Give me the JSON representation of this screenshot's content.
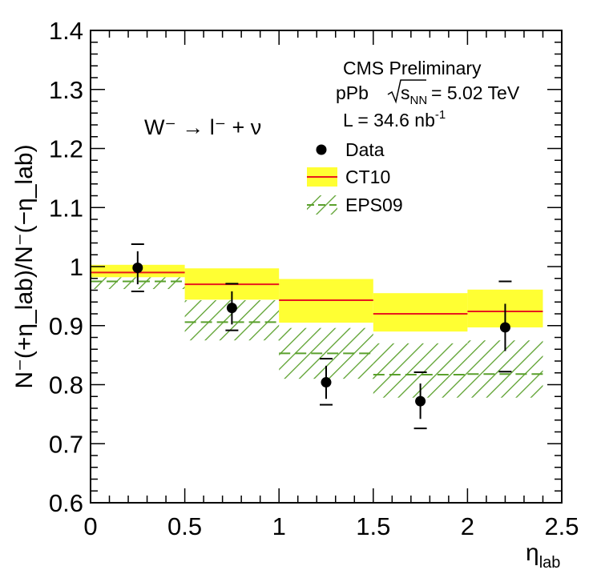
{
  "chart_data": {
    "type": "binned-comparison",
    "xlabel": "η",
    "xlabel_sub": "lab",
    "ylabel_full": "N⁻(+η_lab)/N⁻(−η_lab)",
    "xlim": [
      0,
      2.5
    ],
    "ylim": [
      0.6,
      1.4
    ],
    "x_ticks": [
      "0",
      "0.5",
      "1",
      "1.5",
      "2",
      "2.5"
    ],
    "y_ticks": [
      "0.6",
      "0.7",
      "0.8",
      "0.9",
      "1",
      "1.1",
      "1.2",
      "1.3",
      "1.4"
    ],
    "process_label": "W⁻ → l⁻ + ν",
    "annotations": {
      "experiment": "CMS Preliminary",
      "system": "pPb",
      "energy": "= 5.02 TeV",
      "lumi": "L = 34.6 nb",
      "lumi_unit_exp": "-1"
    },
    "legend": [
      {
        "name": "Data"
      },
      {
        "name": "CT10"
      },
      {
        "name": "EPS09"
      }
    ],
    "bins": [
      [
        0,
        0.5
      ],
      [
        0.5,
        1.0
      ],
      [
        1.0,
        1.5
      ],
      [
        1.5,
        2.0
      ],
      [
        2.0,
        2.4
      ]
    ],
    "series": [
      {
        "name": "Data",
        "x": [
          0.25,
          0.75,
          1.25,
          1.75,
          2.2
        ],
        "y": [
          0.998,
          0.93,
          0.804,
          0.772,
          0.897
        ],
        "stat_err": [
          0.028,
          0.028,
          0.028,
          0.03,
          0.04
        ],
        "sys_low": [
          0.958,
          0.892,
          0.766,
          0.726,
          0.822
        ],
        "sys_high": [
          1.038,
          0.971,
          0.844,
          0.821,
          0.975
        ]
      },
      {
        "name": "CT10",
        "central": [
          0.99,
          0.97,
          0.943,
          0.92,
          0.924
        ],
        "band_low": [
          0.982,
          0.944,
          0.905,
          0.89,
          0.897
        ],
        "band_high": [
          1.003,
          0.997,
          0.979,
          0.955,
          0.961
        ]
      },
      {
        "name": "EPS09",
        "central": [
          0.975,
          0.906,
          0.853,
          0.817,
          0.818
        ],
        "band_low": [
          0.962,
          0.875,
          0.81,
          0.778,
          0.778
        ],
        "band_high": [
          0.982,
          0.943,
          0.896,
          0.87,
          0.875
        ]
      }
    ]
  },
  "colors": {
    "ct10_band": "#ffff33",
    "ct10_line": "#e8191e",
    "eps09_hatch": "#5aa02c",
    "axis": "#000000"
  }
}
